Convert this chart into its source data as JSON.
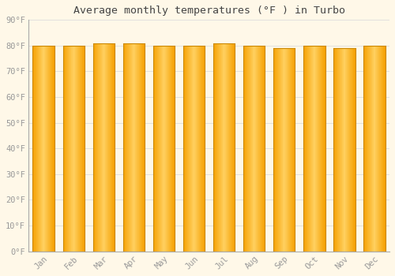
{
  "months": [
    "Jan",
    "Feb",
    "Mar",
    "Apr",
    "May",
    "Jun",
    "Jul",
    "Aug",
    "Sep",
    "Oct",
    "Nov",
    "Dec"
  ],
  "values": [
    80,
    80,
    81,
    81,
    80,
    80,
    81,
    80,
    79,
    80,
    79,
    80
  ],
  "title": "Average monthly temperatures (°F ) in Turbo",
  "ylim": [
    0,
    90
  ],
  "yticks": [
    0,
    10,
    20,
    30,
    40,
    50,
    60,
    70,
    80,
    90
  ],
  "bar_color_center": "#FFD060",
  "bar_color_edge": "#F5A000",
  "bar_edge_color": "#CC8800",
  "background_color": "#FFF8E8",
  "grid_color": "#DDDDDD",
  "text_color": "#999999",
  "title_color": "#444444",
  "bar_width": 0.72,
  "figsize": [
    5.0,
    3.5
  ],
  "dpi": 100
}
